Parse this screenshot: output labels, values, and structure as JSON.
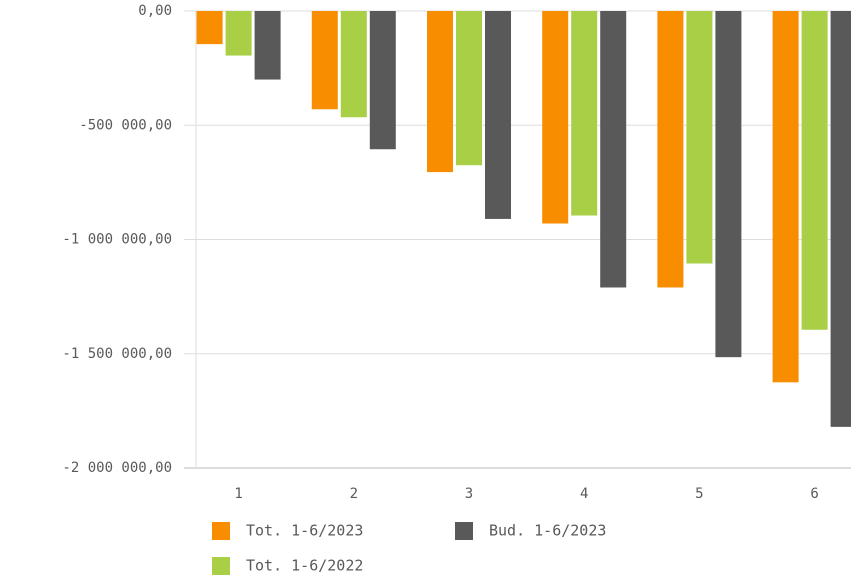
{
  "chart_data": {
    "type": "bar",
    "categories": [
      "1",
      "2",
      "3",
      "4",
      "5",
      "6"
    ],
    "series": [
      {
        "name": "Tot. 1-6/2023",
        "color": "#f98d00",
        "values": [
          -145000,
          -430000,
          -705000,
          -930000,
          -1210000,
          -1625000
        ]
      },
      {
        "name": "Tot. 1-6/2022",
        "color": "#a8cf45",
        "values": [
          -195000,
          -465000,
          -675000,
          -895000,
          -1105000,
          -1395000
        ]
      },
      {
        "name": "Bud. 1-6/2023",
        "color": "#595959",
        "values": [
          -300000,
          -605000,
          -910000,
          -1210000,
          -1515000,
          -1820000
        ]
      }
    ],
    "ylim": [
      -2000000,
      0
    ],
    "yticks": [
      {
        "value": 0,
        "label": "0,00"
      },
      {
        "value": -500000,
        "label": "-500 000,00"
      },
      {
        "value": -1000000,
        "label": "-1 000 000,00"
      },
      {
        "value": -1500000,
        "label": "-1 500 000,00"
      },
      {
        "value": -2000000,
        "label": "-2 000 000,00"
      }
    ],
    "grid": true
  }
}
